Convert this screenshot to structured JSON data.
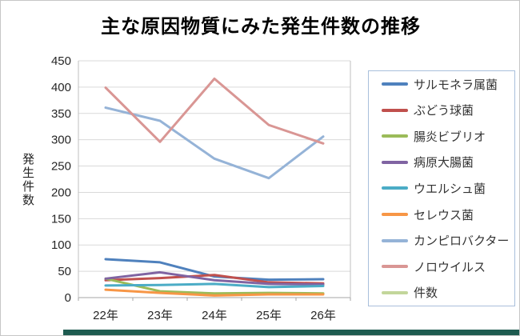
{
  "title": "主な原因物質にみた発生件数の推移",
  "y_axis": {
    "title": "発生件数",
    "tick_labels": [
      "450",
      "400",
      "350",
      "300",
      "250",
      "200",
      "150",
      "100",
      "50",
      "0"
    ]
  },
  "x_axis": {
    "tick_labels": [
      "22年",
      "23年",
      "24年",
      "25年",
      "26年"
    ]
  },
  "legend": {
    "position": "right"
  },
  "colors": {
    "gridline": "#d9d9d9",
    "axis_line": "#a6a6a6",
    "plot_border": "#bfbfbf",
    "tick_text": "#262626",
    "legend_border": "#a9bfdb",
    "bottom_bar": "#1e5b50"
  },
  "chart_data": {
    "type": "line",
    "title": "主な原因物質にみた発生件数の推移",
    "ylabel": "発生件数",
    "ylim": [
      0,
      450
    ],
    "ytick_step": 50,
    "grid": true,
    "legend_position": "right",
    "categories": [
      "22年",
      "23年",
      "24年",
      "25年",
      "26年"
    ],
    "series": [
      {
        "name": "サルモネラ属菌",
        "color": "#4F81BD",
        "values": [
          73,
          67,
          40,
          34,
          35
        ]
      },
      {
        "name": "ぶどう球菌",
        "color": "#C0504D",
        "values": [
          33,
          37,
          43,
          29,
          27
        ]
      },
      {
        "name": "腸炎ビブリオ",
        "color": "#9BBB59",
        "values": [
          36,
          12,
          8,
          9,
          8
        ]
      },
      {
        "name": "病原大腸菌",
        "color": "#8064A2",
        "values": [
          36,
          48,
          33,
          26,
          25
        ]
      },
      {
        "name": "ウエルシュ菌",
        "color": "#4BACC6",
        "values": [
          23,
          24,
          26,
          20,
          22
        ]
      },
      {
        "name": "セレウス菌",
        "color": "#F79646",
        "values": [
          15,
          9,
          4,
          6,
          6
        ]
      },
      {
        "name": "カンピロバクター",
        "color": "#95B3D7",
        "values": [
          361,
          336,
          264,
          227,
          306
        ]
      },
      {
        "name": "ノロウイルス",
        "color": "#D99694",
        "values": [
          399,
          296,
          416,
          328,
          293
        ]
      },
      {
        "name": "件数",
        "color": "#C3D69B",
        "values": []
      }
    ]
  }
}
